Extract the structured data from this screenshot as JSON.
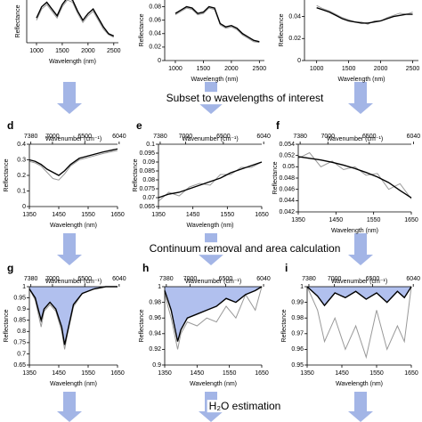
{
  "chart_data": [
    {
      "type": "line",
      "xlim": [
        810,
        2590
      ],
      "ylim": [
        0,
        1.05
      ],
      "xticks": [
        1000,
        1500,
        2000,
        2500
      ],
      "yticks": [],
      "xlabel": "Wavelength (nm)",
      "ylabel": "Reflectance",
      "x": [
        1000,
        1100,
        1200,
        1300,
        1400,
        1500,
        1600,
        1700,
        1800,
        1900,
        2000,
        2100,
        2200,
        2300,
        2400,
        2500
      ],
      "series": [
        {
          "color": "#999999",
          "values": [
            0.5,
            0.75,
            0.85,
            0.7,
            0.55,
            0.8,
            0.95,
            0.9,
            0.65,
            0.45,
            0.6,
            0.7,
            0.5,
            0.3,
            0.18,
            0.12
          ]
        },
        {
          "color": "#000000",
          "values": [
            0.55,
            0.8,
            0.9,
            0.75,
            0.6,
            0.85,
            1.0,
            0.95,
            0.7,
            0.5,
            0.65,
            0.75,
            0.55,
            0.35,
            0.2,
            0.15
          ]
        }
      ]
    },
    {
      "type": "line",
      "xlim": [
        810,
        2590
      ],
      "ylim": [
        0,
        0.09
      ],
      "xticks": [
        1000,
        1500,
        2000,
        2500
      ],
      "yticks": [
        0,
        0.02,
        0.04,
        0.06,
        0.08
      ],
      "xlabel": "Wavelength (nm)",
      "ylabel": "Reflectance",
      "x": [
        1000,
        1100,
        1200,
        1300,
        1400,
        1500,
        1600,
        1700,
        1800,
        1900,
        2000,
        2100,
        2200,
        2300,
        2400,
        2500
      ],
      "series": [
        {
          "color": "#999999",
          "values": [
            0.068,
            0.073,
            0.078,
            0.076,
            0.068,
            0.07,
            0.078,
            0.076,
            0.053,
            0.048,
            0.05,
            0.046,
            0.038,
            0.033,
            0.028,
            0.027
          ]
        },
        {
          "color": "#000000",
          "values": [
            0.07,
            0.075,
            0.08,
            0.078,
            0.07,
            0.072,
            0.08,
            0.078,
            0.055,
            0.05,
            0.052,
            0.048,
            0.04,
            0.035,
            0.03,
            0.028
          ]
        }
      ]
    },
    {
      "type": "line",
      "xlim": [
        810,
        2590
      ],
      "ylim": [
        0,
        0.055
      ],
      "xticks": [
        1000,
        1500,
        2000,
        2500
      ],
      "yticks": [
        0,
        0.02,
        0.04
      ],
      "xlabel": "Wavelength (nm)",
      "ylabel": "Reflectance",
      "x": [
        1000,
        1100,
        1200,
        1300,
        1400,
        1500,
        1600,
        1700,
        1800,
        1900,
        2000,
        2100,
        2200,
        2300,
        2400,
        2500
      ],
      "series": [
        {
          "color": "#999999",
          "values": [
            0.05,
            0.047,
            0.045,
            0.042,
            0.039,
            0.037,
            0.035,
            0.035,
            0.033,
            0.036,
            0.036,
            0.039,
            0.041,
            0.043,
            0.042,
            0.044
          ]
        },
        {
          "color": "#000000",
          "values": [
            0.048,
            0.046,
            0.044,
            0.041,
            0.038,
            0.036,
            0.035,
            0.034,
            0.034,
            0.035,
            0.036,
            0.038,
            0.04,
            0.041,
            0.042,
            0.042
          ]
        }
      ]
    },
    {
      "type": "line",
      "label": "d",
      "xlim": [
        1350,
        1650
      ],
      "ylim": [
        0,
        0.4
      ],
      "xticks": [
        1350,
        1450,
        1550,
        1650
      ],
      "yticks": [
        0,
        0.1,
        0.2,
        0.3,
        0.4
      ],
      "x2ticks": [
        7380,
        7000,
        6500,
        6040
      ],
      "x2label": "Wavenumber (cm⁻¹)",
      "xlabel": "Wavelength (nm)",
      "ylabel": "Reflectance",
      "x": [
        1350,
        1370,
        1390,
        1410,
        1430,
        1450,
        1470,
        1490,
        1520,
        1560,
        1600,
        1650
      ],
      "series": [
        {
          "color": "#999999",
          "values": [
            0.29,
            0.28,
            0.26,
            0.22,
            0.18,
            0.17,
            0.21,
            0.26,
            0.3,
            0.32,
            0.34,
            0.36
          ]
        },
        {
          "color": "#000000",
          "values": [
            0.3,
            0.29,
            0.27,
            0.24,
            0.22,
            0.2,
            0.23,
            0.27,
            0.31,
            0.33,
            0.35,
            0.37
          ]
        }
      ]
    },
    {
      "type": "line",
      "label": "e",
      "xlim": [
        1350,
        1650
      ],
      "ylim": [
        0.065,
        0.1
      ],
      "xticks": [
        1350,
        1450,
        1550,
        1650
      ],
      "yticks": [
        0.065,
        0.07,
        0.075,
        0.08,
        0.085,
        0.09,
        0.095,
        0.1
      ],
      "x2ticks": [
        7380,
        7000,
        6500,
        6040
      ],
      "x2label": "Wavenumber (cm⁻¹)",
      "xlabel": "Wavelength (nm)",
      "ylabel": "Reflectance",
      "x": [
        1350,
        1380,
        1410,
        1440,
        1470,
        1500,
        1530,
        1560,
        1590,
        1620,
        1650
      ],
      "series": [
        {
          "color": "#999999",
          "values": [
            0.068,
            0.073,
            0.071,
            0.076,
            0.078,
            0.077,
            0.083,
            0.083,
            0.087,
            0.087,
            0.09
          ]
        },
        {
          "color": "#000000",
          "values": [
            0.07,
            0.072,
            0.073,
            0.075,
            0.077,
            0.079,
            0.081,
            0.084,
            0.086,
            0.088,
            0.09
          ]
        }
      ]
    },
    {
      "type": "line",
      "label": "f",
      "xlim": [
        1350,
        1650
      ],
      "ylim": [
        0.042,
        0.054
      ],
      "xticks": [
        1350,
        1450,
        1550,
        1650
      ],
      "yticks": [
        0.042,
        0.044,
        0.046,
        0.048,
        0.05,
        0.052,
        0.054
      ],
      "x2ticks": [
        7380,
        7000,
        6500,
        6040
      ],
      "x2label": "Wavenumber (cm⁻¹)",
      "xlabel": "Wavelength (nm)",
      "ylabel": "Reflectance",
      "x": [
        1350,
        1380,
        1410,
        1440,
        1470,
        1500,
        1530,
        1560,
        1590,
        1620,
        1650
      ],
      "series": [
        {
          "color": "#999999",
          "values": [
            0.0515,
            0.0525,
            0.05,
            0.051,
            0.0495,
            0.05,
            0.0485,
            0.0488,
            0.046,
            0.047,
            0.0443
          ]
        },
        {
          "color": "#000000",
          "values": [
            0.0518,
            0.0515,
            0.0512,
            0.0508,
            0.0503,
            0.0497,
            0.049,
            0.0482,
            0.0472,
            0.0458,
            0.0445
          ]
        }
      ]
    },
    {
      "type": "line",
      "label": "g",
      "fill_color": "#a9b9ec",
      "xlim": [
        1350,
        1650
      ],
      "ylim": [
        0.65,
        1
      ],
      "xticks": [
        1350,
        1450,
        1550,
        1650
      ],
      "yticks": [
        0.65,
        0.7,
        0.75,
        0.8,
        0.85,
        0.9,
        0.95,
        1
      ],
      "x2ticks": [
        7380,
        7000,
        6500,
        6040
      ],
      "x2label": "Wavenumber (cm⁻¹)",
      "xlabel": "Wavelength (nm)",
      "ylabel": "Reflectance",
      "x": [
        1350,
        1370,
        1380,
        1390,
        1400,
        1420,
        1440,
        1460,
        1470,
        1480,
        1500,
        1530,
        1570,
        1610,
        1650
      ],
      "series": [
        {
          "color": "#999999",
          "values": [
            0.99,
            0.94,
            0.88,
            0.82,
            0.89,
            0.92,
            0.89,
            0.8,
            0.72,
            0.79,
            0.91,
            0.97,
            0.99,
            1,
            1
          ]
        },
        {
          "color": "#000000",
          "values": [
            0.99,
            0.95,
            0.9,
            0.85,
            0.9,
            0.93,
            0.9,
            0.82,
            0.74,
            0.8,
            0.92,
            0.97,
            0.99,
            1,
            1
          ]
        }
      ]
    },
    {
      "type": "line",
      "label": "h",
      "fill_color": "#a9b9ec",
      "xlim": [
        1350,
        1650
      ],
      "ylim": [
        0.9,
        1
      ],
      "xticks": [
        1350,
        1450,
        1550,
        1650
      ],
      "yticks": [
        0.9,
        0.92,
        0.94,
        0.96,
        0.98,
        1
      ],
      "x2ticks": [
        7380,
        7000,
        6500,
        6040
      ],
      "x2label": "Wavenumber (cm⁻¹)",
      "xlabel": "Wavelength (nm)",
      "ylabel": "Reflectance",
      "x": [
        1350,
        1370,
        1390,
        1400,
        1420,
        1450,
        1480,
        1510,
        1540,
        1570,
        1600,
        1630,
        1650
      ],
      "series": [
        {
          "color": "#999999",
          "values": [
            0.99,
            0.96,
            0.92,
            0.94,
            0.955,
            0.95,
            0.96,
            0.955,
            0.975,
            0.96,
            0.99,
            0.97,
            1
          ]
        },
        {
          "color": "#000000",
          "values": [
            0.995,
            0.97,
            0.93,
            0.945,
            0.96,
            0.965,
            0.97,
            0.975,
            0.985,
            0.98,
            0.99,
            0.995,
            1
          ]
        }
      ]
    },
    {
      "type": "line",
      "label": "i",
      "fill_color": "#a9b9ec",
      "xlim": [
        1350,
        1650
      ],
      "ylim": [
        0.95,
        1
      ],
      "xticks": [
        1350,
        1450,
        1550,
        1650
      ],
      "yticks": [
        0.95,
        0.96,
        0.97,
        0.98,
        0.99,
        1
      ],
      "x2ticks": [
        7380,
        7000,
        6500,
        6040
      ],
      "x2label": "Wavenumber (cm⁻¹)",
      "xlabel": "Wavelength (nm)",
      "ylabel": "Reflectance",
      "x": [
        1350,
        1380,
        1400,
        1430,
        1460,
        1490,
        1520,
        1550,
        1580,
        1610,
        1630,
        1650
      ],
      "series": [
        {
          "color": "#999999",
          "values": [
            1,
            0.985,
            0.965,
            0.98,
            0.96,
            0.975,
            0.955,
            0.985,
            0.96,
            0.975,
            0.965,
            1
          ]
        },
        {
          "color": "#000000",
          "values": [
            1,
            0.994,
            0.988,
            0.996,
            0.993,
            0.997,
            0.992,
            0.996,
            0.99,
            0.997,
            0.993,
            1
          ]
        }
      ]
    }
  ],
  "steps": [
    "Subset to wavelengths of interest",
    "Continuum removal and area calculation",
    "H₂O estimation"
  ]
}
